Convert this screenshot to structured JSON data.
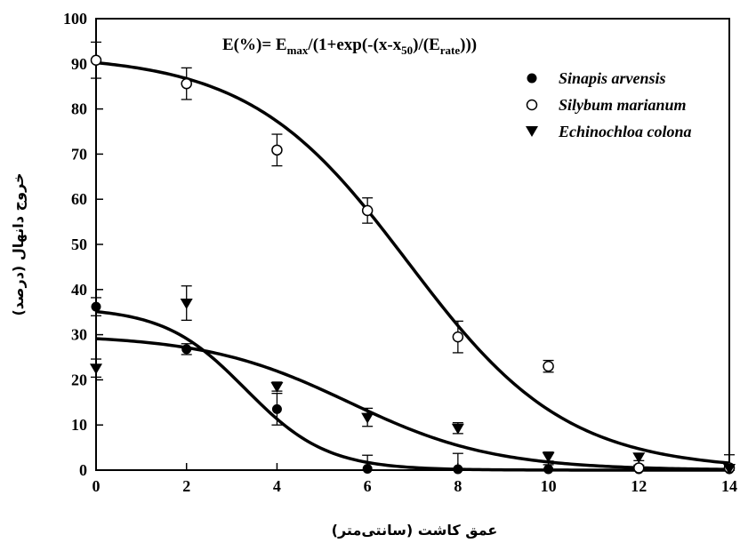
{
  "chart_data": {
    "type": "scatter",
    "equation": {
      "prefix": "E(%)= E",
      "max_sub": "max",
      "mid1": "/(1+exp(-(x-x",
      "x50_sub": "50",
      "mid2": ")/(E",
      "rate_sub": "rate",
      "suffix": ")))"
    },
    "xlabel": "عمق کاشت (سانتی‌متر)",
    "ylabel": "خروج دانهال (درصد)",
    "xlim": [
      0,
      14
    ],
    "ylim": [
      0,
      100
    ],
    "xticks": [
      0,
      2,
      4,
      6,
      8,
      10,
      12,
      14
    ],
    "yticks": [
      0,
      10,
      20,
      30,
      40,
      50,
      60,
      70,
      80,
      90,
      100
    ],
    "grid": false,
    "legend_position": "top-right",
    "series": [
      {
        "name": "Sinapis arvensis",
        "marker": "filled-circle",
        "x": [
          0,
          2,
          4,
          6,
          8,
          10,
          12,
          14
        ],
        "y": [
          36.2,
          26.8,
          13.5,
          0.3,
          0.2,
          0.2,
          0.2,
          0.2
        ],
        "err": [
          2.0,
          1.2,
          3.5,
          3.0,
          3.5,
          1.0,
          0.6,
          0.6
        ],
        "fit": {
          "emax": 36,
          "x50": 3.3,
          "rate": 0.9
        }
      },
      {
        "name": "Silybum marianum",
        "marker": "open-circle",
        "x": [
          0,
          2,
          4,
          6,
          8,
          10,
          12,
          14
        ],
        "y": [
          90.8,
          85.6,
          70.9,
          57.5,
          29.5,
          23.0,
          0.5,
          0.5
        ],
        "err": [
          4.0,
          3.5,
          3.5,
          2.8,
          3.5,
          1.3,
          0.6,
          0.6
        ],
        "fit": {
          "emax": 92,
          "x50": 6.9,
          "rate": 1.75
        }
      },
      {
        "name": "Echinochloa colona",
        "marker": "filled-triangle-down",
        "x": [
          0,
          2,
          4,
          6,
          8,
          10,
          12,
          14
        ],
        "y": [
          22.6,
          37.0,
          18.5,
          11.7,
          9.3,
          3.0,
          2.9,
          0.4
        ],
        "err": [
          2.0,
          3.8,
          1.0,
          2.0,
          1.2,
          1.0,
          0.8,
          3.0
        ],
        "fit": {
          "emax": 30,
          "x50": 5.6,
          "rate": 1.6
        }
      }
    ]
  }
}
